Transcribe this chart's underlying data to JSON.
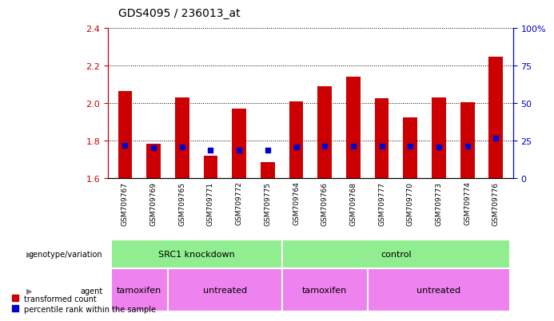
{
  "title": "GDS4095 / 236013_at",
  "samples": [
    "GSM709767",
    "GSM709769",
    "GSM709765",
    "GSM709771",
    "GSM709772",
    "GSM709775",
    "GSM709764",
    "GSM709766",
    "GSM709768",
    "GSM709777",
    "GSM709770",
    "GSM709773",
    "GSM709774",
    "GSM709776"
  ],
  "transformed_count": [
    2.065,
    1.785,
    2.03,
    1.72,
    1.97,
    1.685,
    2.01,
    2.09,
    2.14,
    2.025,
    1.925,
    2.03,
    2.005,
    2.245
  ],
  "perc_values_right": [
    22,
    20,
    21,
    18.5,
    18.5,
    18.5,
    21,
    21.5,
    21.5,
    21.5,
    21.5,
    21,
    21.5,
    26.5
  ],
  "ylim_left": [
    1.6,
    2.4
  ],
  "ylim_right": [
    0,
    100
  ],
  "yticks_left": [
    1.6,
    1.8,
    2.0,
    2.2,
    2.4
  ],
  "yticks_right": [
    0,
    25,
    50,
    75,
    100
  ],
  "bar_color": "#cc0000",
  "dot_color": "#0000cc",
  "bar_bottom": 1.6,
  "geno_groups": [
    {
      "label": "SRC1 knockdown",
      "start": 0,
      "end": 6
    },
    {
      "label": "control",
      "start": 6,
      "end": 14
    }
  ],
  "agent_groups": [
    {
      "label": "tamoxifen",
      "start": 0,
      "end": 2
    },
    {
      "label": "untreated",
      "start": 2,
      "end": 6
    },
    {
      "label": "tamoxifen",
      "start": 6,
      "end": 9
    },
    {
      "label": "untreated",
      "start": 9,
      "end": 14
    }
  ],
  "geno_color": "#90ee90",
  "agent_color": "#ee82ee",
  "xtick_bg_color": "#d3d3d3",
  "bar_width": 0.5
}
